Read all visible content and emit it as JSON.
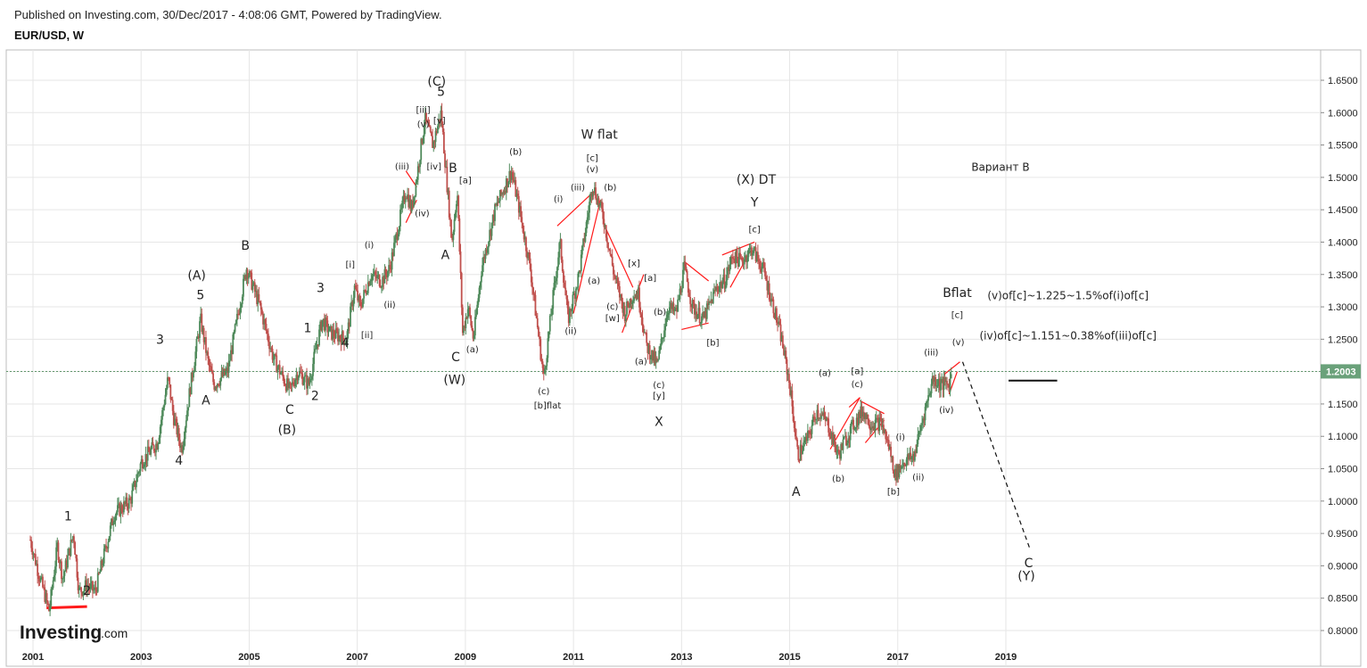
{
  "header": {
    "published": "Published on Investing.com, 30/Dec/2017 - 4:08:06 GMT, Powered by TradingView.",
    "symbol": "EUR/USD, W"
  },
  "logo": {
    "brand": "Investing",
    "suffix": ".com"
  },
  "colors": {
    "up": "#4f8a5b",
    "down": "#c0504d",
    "markup": "#ff1a1a",
    "price_tag_bg": "#6aa17a",
    "price_line": "#4f8a5b"
  },
  "chart_data": {
    "type": "candlestick",
    "title": "",
    "xlabel": "",
    "ylabel": "",
    "xlim": [
      2001.0,
      2020.7
    ],
    "ylim": [
      0.78,
      1.67
    ],
    "x_ticks": [
      "2001",
      "2003",
      "2005",
      "2007",
      "2009",
      "2011",
      "2013",
      "2015",
      "2017",
      "2019"
    ],
    "y_ticks": [
      "0.8000",
      "0.8500",
      "0.9000",
      "0.9500",
      "1.0000",
      "1.0500",
      "1.1000",
      "1.1500",
      "1.2000",
      "1.2500",
      "1.3000",
      "1.3500",
      "1.4000",
      "1.4500",
      "1.5000",
      "1.5500",
      "1.6000",
      "1.6500"
    ],
    "last_price": {
      "label": "1.2003",
      "value": 1.2003
    },
    "grid": true,
    "price_path": [
      [
        2000.95,
        0.94
      ],
      [
        2001.1,
        0.89
      ],
      [
        2001.3,
        0.83
      ],
      [
        2001.45,
        0.93
      ],
      [
        2001.55,
        0.88
      ],
      [
        2001.75,
        0.95
      ],
      [
        2001.85,
        0.86
      ],
      [
        2002.0,
        0.87
      ],
      [
        2002.15,
        0.86
      ],
      [
        2002.5,
        0.98
      ],
      [
        2002.8,
        1.0
      ],
      [
        2003.0,
        1.06
      ],
      [
        2003.3,
        1.09
      ],
      [
        2003.5,
        1.19
      ],
      [
        2003.6,
        1.13
      ],
      [
        2003.75,
        1.08
      ],
      [
        2003.9,
        1.17
      ],
      [
        2004.1,
        1.28
      ],
      [
        2004.25,
        1.21
      ],
      [
        2004.35,
        1.18
      ],
      [
        2004.6,
        1.2
      ],
      [
        2004.95,
        1.36
      ],
      [
        2005.2,
        1.3
      ],
      [
        2005.45,
        1.22
      ],
      [
        2005.75,
        1.17
      ],
      [
        2005.9,
        1.2
      ],
      [
        2006.1,
        1.18
      ],
      [
        2006.35,
        1.28
      ],
      [
        2006.5,
        1.26
      ],
      [
        2006.8,
        1.25
      ],
      [
        2006.95,
        1.33
      ],
      [
        2007.05,
        1.3
      ],
      [
        2007.25,
        1.35
      ],
      [
        2007.45,
        1.34
      ],
      [
        2007.6,
        1.36
      ],
      [
        2007.9,
        1.48
      ],
      [
        2008.0,
        1.45
      ],
      [
        2008.1,
        1.5
      ],
      [
        2008.25,
        1.59
      ],
      [
        2008.4,
        1.55
      ],
      [
        2008.55,
        1.6
      ],
      [
        2008.65,
        1.5
      ],
      [
        2008.75,
        1.4
      ],
      [
        2008.85,
        1.48
      ],
      [
        2008.95,
        1.26
      ],
      [
        2009.05,
        1.3
      ],
      [
        2009.15,
        1.25
      ],
      [
        2009.3,
        1.36
      ],
      [
        2009.55,
        1.45
      ],
      [
        2009.85,
        1.51
      ],
      [
        2010.0,
        1.45
      ],
      [
        2010.2,
        1.36
      ],
      [
        2010.45,
        1.19
      ],
      [
        2010.6,
        1.3
      ],
      [
        2010.75,
        1.4
      ],
      [
        2010.9,
        1.28
      ],
      [
        2011.1,
        1.35
      ],
      [
        2011.35,
        1.49
      ],
      [
        2011.55,
        1.44
      ],
      [
        2011.75,
        1.35
      ],
      [
        2011.95,
        1.29
      ],
      [
        2012.1,
        1.32
      ],
      [
        2012.2,
        1.32
      ],
      [
        2012.35,
        1.24
      ],
      [
        2012.55,
        1.21
      ],
      [
        2012.75,
        1.3
      ],
      [
        2012.9,
        1.29
      ],
      [
        2013.05,
        1.36
      ],
      [
        2013.2,
        1.3
      ],
      [
        2013.4,
        1.28
      ],
      [
        2013.65,
        1.33
      ],
      [
        2013.8,
        1.34
      ],
      [
        2013.95,
        1.38
      ],
      [
        2014.1,
        1.37
      ],
      [
        2014.3,
        1.39
      ],
      [
        2014.5,
        1.36
      ],
      [
        2014.7,
        1.3
      ],
      [
        2014.85,
        1.25
      ],
      [
        2015.0,
        1.18
      ],
      [
        2015.15,
        1.07
      ],
      [
        2015.35,
        1.1
      ],
      [
        2015.5,
        1.14
      ],
      [
        2015.7,
        1.12
      ],
      [
        2015.9,
        1.07
      ],
      [
        2016.0,
        1.09
      ],
      [
        2016.2,
        1.12
      ],
      [
        2016.35,
        1.14
      ],
      [
        2016.5,
        1.12
      ],
      [
        2016.7,
        1.12
      ],
      [
        2016.85,
        1.08
      ],
      [
        2016.95,
        1.04
      ],
      [
        2017.1,
        1.06
      ],
      [
        2017.3,
        1.07
      ],
      [
        2017.5,
        1.14
      ],
      [
        2017.65,
        1.19
      ],
      [
        2017.8,
        1.18
      ],
      [
        2017.95,
        1.18
      ],
      [
        2018.0,
        1.2
      ]
    ],
    "annotations": [
      {
        "t": "1",
        "x": 2001.65,
        "y": 0.97,
        "s": "m"
      },
      {
        "t": "2",
        "x": 2002.0,
        "y": 0.855,
        "s": "m"
      },
      {
        "t": "3",
        "x": 2003.35,
        "y": 1.243,
        "s": "m"
      },
      {
        "t": "4",
        "x": 2003.7,
        "y": 1.056,
        "s": "m"
      },
      {
        "t": "(A)",
        "x": 2004.03,
        "y": 1.342,
        "s": "m"
      },
      {
        "t": "5",
        "x": 2004.1,
        "y": 1.312,
        "s": "m"
      },
      {
        "t": "A",
        "x": 2004.2,
        "y": 1.149,
        "s": "m"
      },
      {
        "t": "B",
        "x": 2004.93,
        "y": 1.388,
        "s": "m"
      },
      {
        "t": "C",
        "x": 2005.75,
        "y": 1.135,
        "s": "m"
      },
      {
        "t": "(B)",
        "x": 2005.7,
        "y": 1.104,
        "s": "m"
      },
      {
        "t": "2",
        "x": 2006.22,
        "y": 1.156,
        "s": "m"
      },
      {
        "t": "1",
        "x": 2006.08,
        "y": 1.261,
        "s": "m"
      },
      {
        "t": "3",
        "x": 2006.32,
        "y": 1.323,
        "s": "m"
      },
      {
        "t": "4",
        "x": 2006.78,
        "y": 1.238,
        "s": "m"
      },
      {
        "t": "[i]",
        "x": 2006.87,
        "y": 1.361,
        "s": "s"
      },
      {
        "t": "[ii]",
        "x": 2007.18,
        "y": 1.252,
        "s": "s"
      },
      {
        "t": "(i)",
        "x": 2007.22,
        "y": 1.391,
        "s": "s"
      },
      {
        "t": "(ii)",
        "x": 2007.6,
        "y": 1.299,
        "s": "s"
      },
      {
        "t": "(iii)",
        "x": 2007.83,
        "y": 1.512,
        "s": "s"
      },
      {
        "t": "(iv)",
        "x": 2008.2,
        "y": 1.44,
        "s": "s"
      },
      {
        "t": "(C)",
        "x": 2008.47,
        "y": 1.642,
        "s": "m"
      },
      {
        "t": "[iii]",
        "x": 2008.22,
        "y": 1.6,
        "s": "s"
      },
      {
        "t": "5",
        "x": 2008.55,
        "y": 1.626,
        "s": "m"
      },
      {
        "t": "(v)",
        "x": 2008.22,
        "y": 1.578,
        "s": "s"
      },
      {
        "t": "[v]",
        "x": 2008.52,
        "y": 1.583,
        "s": "s"
      },
      {
        "t": "[iv]",
        "x": 2008.42,
        "y": 1.512,
        "s": "s"
      },
      {
        "t": "B",
        "x": 2008.77,
        "y": 1.508,
        "s": "m"
      },
      {
        "t": "[a]",
        "x": 2009.0,
        "y": 1.491,
        "s": "s"
      },
      {
        "t": "A",
        "x": 2008.63,
        "y": 1.374,
        "s": "m"
      },
      {
        "t": "(a)",
        "x": 2009.13,
        "y": 1.23,
        "s": "s"
      },
      {
        "t": "C",
        "x": 2008.82,
        "y": 1.216,
        "s": "m"
      },
      {
        "t": "(W)",
        "x": 2008.8,
        "y": 1.181,
        "s": "m"
      },
      {
        "t": "(b)",
        "x": 2009.93,
        "y": 1.535,
        "s": "s"
      },
      {
        "t": "(c)",
        "x": 2010.45,
        "y": 1.165,
        "s": "s"
      },
      {
        "t": "[b]flat",
        "x": 2010.52,
        "y": 1.143,
        "s": "s"
      },
      {
        "t": "(i)",
        "x": 2010.72,
        "y": 1.462,
        "s": "s"
      },
      {
        "t": "(ii)",
        "x": 2010.95,
        "y": 1.258,
        "s": "s"
      },
      {
        "t": "(iii)",
        "x": 2011.08,
        "y": 1.48,
        "s": "s"
      },
      {
        "t": "W flat",
        "x": 2011.48,
        "y": 1.56,
        "s": "m"
      },
      {
        "t": "[c]",
        "x": 2011.35,
        "y": 1.525,
        "s": "s"
      },
      {
        "t": "(v)",
        "x": 2011.35,
        "y": 1.508,
        "s": "s"
      },
      {
        "t": "(b)",
        "x": 2011.68,
        "y": 1.48,
        "s": "s"
      },
      {
        "t": "(a)",
        "x": 2011.38,
        "y": 1.336,
        "s": "s"
      },
      {
        "t": "(c)",
        "x": 2011.72,
        "y": 1.296,
        "s": "s"
      },
      {
        "t": "[w]",
        "x": 2011.72,
        "y": 1.278,
        "s": "s"
      },
      {
        "t": "[x]",
        "x": 2012.12,
        "y": 1.363,
        "s": "s"
      },
      {
        "t": "[a]",
        "x": 2012.42,
        "y": 1.34,
        "s": "s"
      },
      {
        "t": "(b)",
        "x": 2012.6,
        "y": 1.288,
        "s": "s"
      },
      {
        "t": "(a)",
        "x": 2012.25,
        "y": 1.211,
        "s": "s"
      },
      {
        "t": "(c)",
        "x": 2012.58,
        "y": 1.175,
        "s": "s"
      },
      {
        "t": "[y]",
        "x": 2012.58,
        "y": 1.158,
        "s": "s"
      },
      {
        "t": "X",
        "x": 2012.58,
        "y": 1.116,
        "s": "m"
      },
      {
        "t": "[b]",
        "x": 2013.58,
        "y": 1.24,
        "s": "s"
      },
      {
        "t": "(X) DT",
        "x": 2014.38,
        "y": 1.49,
        "s": "m"
      },
      {
        "t": "Y",
        "x": 2014.35,
        "y": 1.455,
        "s": "m"
      },
      {
        "t": "[c]",
        "x": 2014.35,
        "y": 1.415,
        "s": "s"
      },
      {
        "t": "A",
        "x": 2015.12,
        "y": 1.008,
        "s": "m"
      },
      {
        "t": "(a)",
        "x": 2015.65,
        "y": 1.193,
        "s": "s"
      },
      {
        "t": "(b)",
        "x": 2015.9,
        "y": 1.03,
        "s": "s"
      },
      {
        "t": "[a]",
        "x": 2016.25,
        "y": 1.196,
        "s": "s"
      },
      {
        "t": "(c)",
        "x": 2016.25,
        "y": 1.176,
        "s": "s"
      },
      {
        "t": "[b]",
        "x": 2016.92,
        "y": 1.01,
        "s": "s"
      },
      {
        "t": "(i)",
        "x": 2017.05,
        "y": 1.094,
        "s": "s"
      },
      {
        "t": "(ii)",
        "x": 2017.38,
        "y": 1.032,
        "s": "s"
      },
      {
        "t": "(iii)",
        "x": 2017.62,
        "y": 1.225,
        "s": "s"
      },
      {
        "t": "(iv)",
        "x": 2017.9,
        "y": 1.136,
        "s": "s"
      },
      {
        "t": "(v)",
        "x": 2018.12,
        "y": 1.241,
        "s": "s"
      },
      {
        "t": "Bflat",
        "x": 2018.1,
        "y": 1.315,
        "s": "m"
      },
      {
        "t": "[c]",
        "x": 2018.1,
        "y": 1.283,
        "s": "s"
      },
      {
        "t": "C",
        "x": 2019.42,
        "y": 0.898,
        "s": "m"
      },
      {
        "t": "(Y)",
        "x": 2019.38,
        "y": 0.878,
        "s": "m"
      }
    ],
    "notes": [
      {
        "t": "Вариант В",
        "x": 2018.9,
        "y": 1.51
      },
      {
        "t": "(v)of[c]~1.225~1.5%of(i)of[c]",
        "x": 2020.15,
        "y": 1.312
      },
      {
        "t": "(iv)of[c]~1.151~0.38%of(iii)of[c]",
        "x": 2020.15,
        "y": 1.25
      }
    ],
    "markup_lines": [
      [
        [
          2001.25,
          0.835
        ],
        [
          2002.0,
          0.837
        ]
      ],
      [
        [
          2007.9,
          1.51
        ],
        [
          2008.1,
          1.485
        ]
      ],
      [
        [
          2007.9,
          1.43
        ],
        [
          2008.1,
          1.465
        ]
      ],
      [
        [
          2010.7,
          1.425
        ],
        [
          2011.4,
          1.48
        ]
      ],
      [
        [
          2011.0,
          1.29
        ],
        [
          2011.5,
          1.465
        ]
      ],
      [
        [
          2011.55,
          1.43
        ],
        [
          2012.1,
          1.33
        ]
      ],
      [
        [
          2011.9,
          1.26
        ],
        [
          2012.3,
          1.35
        ]
      ],
      [
        [
          2013.0,
          1.265
        ],
        [
          2013.5,
          1.275
        ]
      ],
      [
        [
          2013.05,
          1.37
        ],
        [
          2013.5,
          1.34
        ]
      ],
      [
        [
          2013.75,
          1.38
        ],
        [
          2014.35,
          1.4
        ]
      ],
      [
        [
          2013.9,
          1.33
        ],
        [
          2014.3,
          1.39
        ]
      ],
      [
        [
          2016.1,
          1.145
        ],
        [
          2016.3,
          1.16
        ]
      ],
      [
        [
          2015.75,
          1.08
        ],
        [
          2016.3,
          1.16
        ]
      ],
      [
        [
          2016.3,
          1.155
        ],
        [
          2016.75,
          1.135
        ]
      ],
      [
        [
          2016.4,
          1.09
        ],
        [
          2016.75,
          1.125
        ]
      ],
      [
        [
          2017.85,
          1.195
        ],
        [
          2018.15,
          1.215
        ]
      ],
      [
        [
          2017.95,
          1.165
        ],
        [
          2018.1,
          1.2
        ]
      ]
    ],
    "projection_dashed": [
      [
        2018.2,
        1.215
      ],
      [
        2019.45,
        0.925
      ]
    ],
    "target_line": [
      [
        2019.05,
        1.186
      ],
      [
        2019.95,
        1.186
      ]
    ]
  }
}
